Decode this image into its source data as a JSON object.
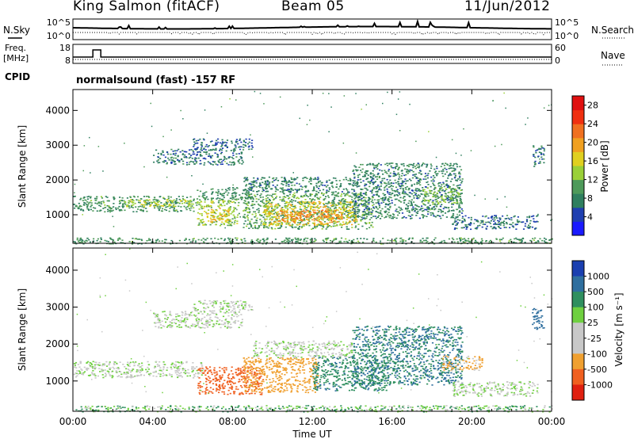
{
  "header": {
    "station": "King Salmon (fitACF)",
    "beam": "Beam 05",
    "date": "11/Jun/2012"
  },
  "noise_panel": {
    "left_label": "N.Sky",
    "right_label": "N.Search",
    "left_ticks": [
      "10^5",
      "10^0"
    ],
    "right_ticks": [
      "10^5",
      "10^0"
    ]
  },
  "freq_panel": {
    "left_label_1": "Freq.",
    "left_label_2": "[MHz]",
    "right_label": "Nave",
    "left_ticks": [
      "18",
      "8"
    ],
    "right_ticks": [
      "60",
      "0"
    ]
  },
  "cpid": {
    "label": "CPID",
    "text": "normalsound (fast) -157 RF"
  },
  "colors": {
    "power_scale": [
      "#1a1aff",
      "#1f3fb0",
      "#2f7f5f",
      "#4e9a5a",
      "#9ad038",
      "#e0d020",
      "#f0a020",
      "#f07020",
      "#f03010",
      "#e01010"
    ],
    "velocity_scale": [
      "#1a3fb0",
      "#2f6f9f",
      "#2f8f5f",
      "#6fd040",
      "#c8c8c8",
      "#c8c8c8",
      "#f0a030",
      "#f06020",
      "#e02010"
    ]
  },
  "chart_data": [
    {
      "type": "heatmap",
      "title": "",
      "xlabel": "",
      "ylabel": "Slant Range [km]",
      "xticks": [
        "00:00",
        "04:00",
        "08:00",
        "12:00",
        "16:00",
        "20:00",
        "00:00"
      ],
      "yticks": [
        "1000",
        "2000",
        "3000",
        "4000"
      ],
      "xlim_hours": [
        0,
        24
      ],
      "ylim_km": [
        180,
        4600
      ],
      "colorbar": {
        "label": "Power [dB]",
        "ticks": [
          "4",
          "8",
          "12",
          "16",
          "20",
          "24",
          "28"
        ],
        "range": [
          0,
          30
        ]
      },
      "patches": [
        {
          "t0": 0.0,
          "t1": 6.2,
          "r0": 1100,
          "r1": 1550,
          "v": 9
        },
        {
          "t0": 2.5,
          "t1": 6.0,
          "r0": 1250,
          "r1": 1450,
          "v": 15
        },
        {
          "t0": 6.2,
          "t1": 8.3,
          "r0": 700,
          "r1": 1450,
          "v": 13
        },
        {
          "t0": 6.6,
          "t1": 7.8,
          "r0": 800,
          "r1": 1200,
          "v": 18
        },
        {
          "t0": 6.2,
          "t1": 9.0,
          "r0": 1450,
          "r1": 1800,
          "v": 8
        },
        {
          "t0": 8.5,
          "t1": 15.0,
          "r0": 600,
          "r1": 1650,
          "v": 10
        },
        {
          "t0": 9.5,
          "t1": 14.2,
          "r0": 700,
          "r1": 1400,
          "v": 17
        },
        {
          "t0": 10.2,
          "t1": 13.5,
          "r0": 800,
          "r1": 1150,
          "v": 22
        },
        {
          "t0": 8.5,
          "t1": 14.0,
          "r0": 1650,
          "r1": 2100,
          "v": 7
        },
        {
          "t0": 4.0,
          "t1": 8.5,
          "r0": 2450,
          "r1": 2900,
          "v": 6
        },
        {
          "t0": 6.0,
          "t1": 9.0,
          "r0": 2900,
          "r1": 3200,
          "v": 5
        },
        {
          "t0": 14.0,
          "t1": 19.5,
          "r0": 900,
          "r1": 2500,
          "v": 7
        },
        {
          "t0": 17.5,
          "t1": 19.5,
          "r0": 1300,
          "r1": 1800,
          "v": 12
        },
        {
          "t0": 19.0,
          "t1": 23.3,
          "r0": 600,
          "r1": 1000,
          "v": 6
        },
        {
          "t0": 0.0,
          "t1": 24.0,
          "r0": 180,
          "r1": 350,
          "v": 9
        },
        {
          "t0": 23.0,
          "t1": 23.6,
          "r0": 2400,
          "r1": 3000,
          "v": 6
        }
      ]
    },
    {
      "type": "heatmap",
      "title": "",
      "xlabel": "Time UT",
      "ylabel": "Slant Range [km]",
      "xticks": [
        "00:00",
        "04:00",
        "08:00",
        "12:00",
        "16:00",
        "20:00",
        "00:00"
      ],
      "yticks": [
        "1000",
        "2000",
        "3000",
        "4000"
      ],
      "xlim_hours": [
        0,
        24
      ],
      "ylim_km": [
        180,
        4600
      ],
      "colorbar": {
        "label": "Velocity [m s⁻¹]",
        "ticks": [
          "1000",
          "500",
          "100",
          "25",
          "-25",
          "-100",
          "-500",
          "-1000"
        ]
      },
      "patches": [
        {
          "t0": 0.0,
          "t1": 6.5,
          "r0": 1100,
          "r1": 1550,
          "v": 0
        },
        {
          "t0": 6.2,
          "t1": 9.5,
          "r0": 650,
          "r1": 1400,
          "v": -600
        },
        {
          "t0": 8.5,
          "t1": 12.3,
          "r0": 700,
          "r1": 1650,
          "v": -200
        },
        {
          "t0": 12.0,
          "t1": 15.8,
          "r0": 750,
          "r1": 1700,
          "v": 250
        },
        {
          "t0": 9.0,
          "t1": 14.0,
          "r0": 1650,
          "r1": 2100,
          "v": 0
        },
        {
          "t0": 4.0,
          "t1": 8.5,
          "r0": 2450,
          "r1": 2900,
          "v": 0
        },
        {
          "t0": 6.0,
          "t1": 9.0,
          "r0": 2900,
          "r1": 3200,
          "v": 0
        },
        {
          "t0": 14.0,
          "t1": 19.5,
          "r0": 900,
          "r1": 2500,
          "v": 300
        },
        {
          "t0": 18.5,
          "t1": 20.5,
          "r0": 1300,
          "r1": 1700,
          "v": -150
        },
        {
          "t0": 19.0,
          "t1": 23.3,
          "r0": 600,
          "r1": 1000,
          "v": 0
        },
        {
          "t0": 0.0,
          "t1": 24.0,
          "r0": 180,
          "r1": 350,
          "v": 80
        },
        {
          "t0": 23.0,
          "t1": 23.6,
          "r0": 2400,
          "r1": 3000,
          "v": 600
        }
      ]
    }
  ]
}
